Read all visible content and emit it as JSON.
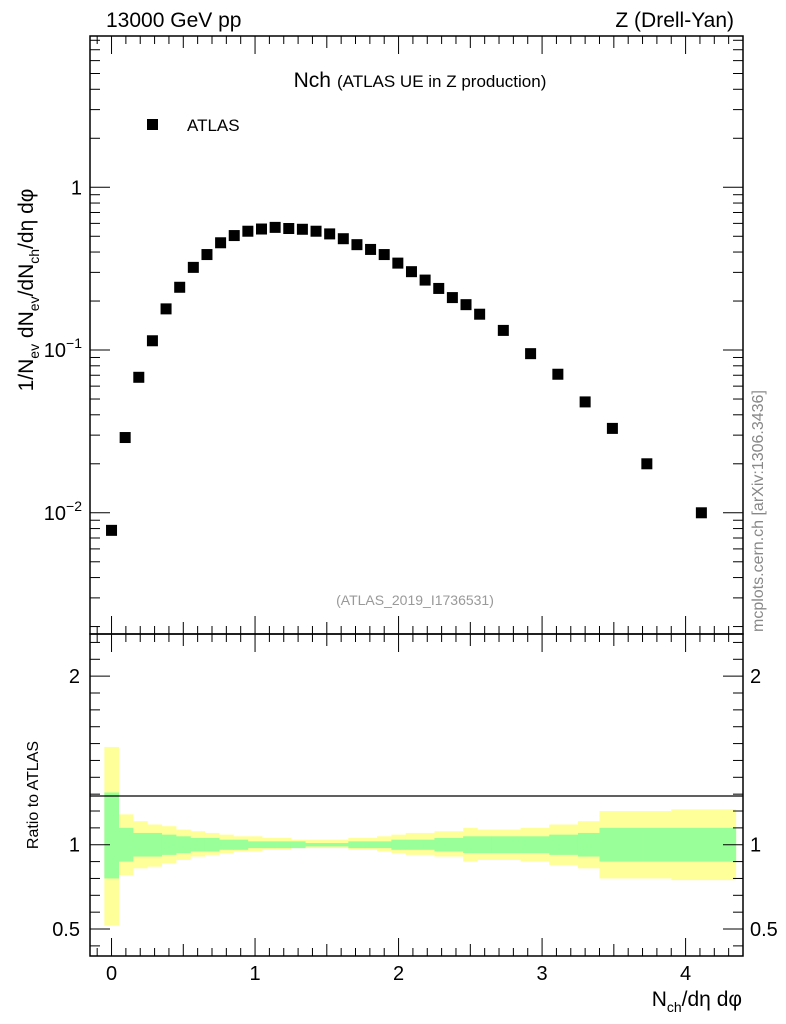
{
  "header": {
    "left": "13000 GeV pp",
    "right": "Z (Drell-Yan)"
  },
  "title": {
    "main": "Nch",
    "sub": "(ATLAS UE in Z production)"
  },
  "watermark": "(ATLAS_2019_I1736531)",
  "side_label": "mcplots.cern.ch [arXiv:1306.3436]",
  "chart_data": [
    {
      "type": "scatter",
      "yscale": "log",
      "ylabel": "1/N_ev dN_ev/dN_ch/dη dφ",
      "xlim": [
        -0.15,
        4.4
      ],
      "ylim": [
        0.0018,
        8.5
      ],
      "legend": {
        "position": "top-left",
        "marker": "square"
      },
      "series": [
        {
          "name": "ATLAS",
          "color": "#000000",
          "x": [
            0,
            0.095,
            0.19,
            0.285,
            0.38,
            0.475,
            0.57,
            0.665,
            0.76,
            0.855,
            0.95,
            1.045,
            1.14,
            1.235,
            1.33,
            1.425,
            1.52,
            1.615,
            1.71,
            1.805,
            1.9,
            1.995,
            2.09,
            2.185,
            2.28,
            2.375,
            2.47,
            2.565,
            2.73,
            2.92,
            3.11,
            3.3,
            3.49,
            3.73,
            4.11
          ],
          "values": [
            0.0078,
            0.029,
            0.068,
            0.114,
            0.179,
            0.243,
            0.322,
            0.386,
            0.456,
            0.505,
            0.537,
            0.554,
            0.567,
            0.558,
            0.552,
            0.537,
            0.517,
            0.483,
            0.444,
            0.415,
            0.386,
            0.342,
            0.303,
            0.269,
            0.239,
            0.21,
            0.19,
            0.166,
            0.132,
            0.095,
            0.071,
            0.048,
            0.033,
            0.02,
            0.01
          ]
        }
      ]
    },
    {
      "type": "area",
      "ylabel": "Ratio to ATLAS",
      "xlabel": "N_ch/dη dφ",
      "xlim": [
        -0.15,
        4.4
      ],
      "ylim": [
        0.34,
        2.25
      ],
      "reference_line": 1,
      "x_tick_labels": [
        "0",
        "1",
        "2",
        "3",
        "4"
      ],
      "bins": [
        -0.05,
        0.05,
        0.15,
        0.25,
        0.35,
        0.45,
        0.55,
        0.65,
        0.75,
        0.85,
        0.95,
        1.05,
        1.15,
        1.25,
        1.35,
        1.45,
        1.55,
        1.65,
        1.75,
        1.85,
        1.95,
        2.05,
        2.15,
        2.25,
        2.35,
        2.45,
        2.55,
        2.65,
        2.85,
        3.05,
        3.25,
        3.4,
        3.7,
        3.9,
        4.35
      ],
      "series": [
        {
          "color": "#ffff99",
          "lower": [
            0.52,
            0.82,
            0.86,
            0.87,
            0.89,
            0.91,
            0.93,
            0.94,
            0.95,
            0.96,
            0.96,
            0.97,
            0.97,
            0.98,
            0.98,
            0.98,
            0.98,
            0.97,
            0.97,
            0.96,
            0.95,
            0.94,
            0.94,
            0.93,
            0.93,
            0.9,
            0.91,
            0.91,
            0.9,
            0.88,
            0.86,
            0.8,
            0.8,
            0.79
          ],
          "upper": [
            1.58,
            1.18,
            1.14,
            1.12,
            1.11,
            1.09,
            1.08,
            1.07,
            1.06,
            1.05,
            1.05,
            1.04,
            1.04,
            1.03,
            1.03,
            1.03,
            1.03,
            1.04,
            1.04,
            1.05,
            1.06,
            1.07,
            1.07,
            1.08,
            1.08,
            1.1,
            1.09,
            1.09,
            1.1,
            1.12,
            1.14,
            1.2,
            1.2,
            1.21
          ]
        },
        {
          "color": "#99ff99",
          "lower": [
            0.8,
            0.9,
            0.93,
            0.93,
            0.94,
            0.95,
            0.96,
            0.96,
            0.97,
            0.97,
            0.98,
            0.98,
            0.98,
            0.98,
            0.99,
            0.99,
            0.99,
            0.98,
            0.98,
            0.98,
            0.97,
            0.97,
            0.97,
            0.96,
            0.96,
            0.95,
            0.95,
            0.95,
            0.95,
            0.94,
            0.93,
            0.9,
            0.9,
            0.9
          ],
          "upper": [
            1.31,
            1.1,
            1.07,
            1.07,
            1.06,
            1.05,
            1.04,
            1.04,
            1.03,
            1.03,
            1.02,
            1.02,
            1.02,
            1.02,
            1.01,
            1.01,
            1.01,
            1.02,
            1.02,
            1.02,
            1.03,
            1.03,
            1.03,
            1.04,
            1.04,
            1.05,
            1.05,
            1.05,
            1.05,
            1.06,
            1.07,
            1.1,
            1.1,
            1.1
          ]
        }
      ]
    }
  ]
}
